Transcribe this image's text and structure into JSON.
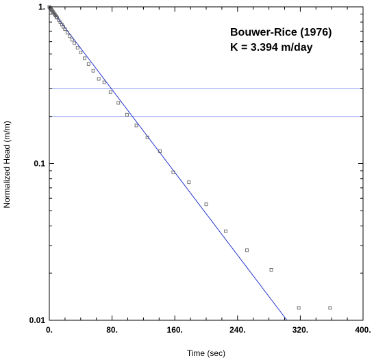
{
  "chart_data": {
    "type": "scatter",
    "xlabel": "Time (sec)",
    "ylabel": "Normalized Head (m/m)",
    "x_ticks": [
      0,
      80,
      160,
      240,
      320,
      400
    ],
    "x_tick_labels": [
      "0.",
      "80.",
      "160.",
      "240.",
      "320.",
      "400."
    ],
    "y_ticks": [
      0.01,
      0.1,
      1
    ],
    "y_tick_labels": [
      "0.01",
      "0.1",
      "1."
    ],
    "xlim": [
      0,
      400
    ],
    "ylim": [
      0.01,
      1
    ],
    "y_scale": "log",
    "grid": false,
    "annotation": {
      "line1": "Bouwer-Rice (1976)",
      "line2": "K = 3.394 m/day"
    },
    "reference_lines": [
      0.3,
      0.2
    ],
    "fit_line": {
      "x": [
        0,
        303
      ],
      "y": [
        1,
        0.01
      ]
    },
    "colors": {
      "fit": "#2233cc",
      "reference": "#8899ee",
      "points": "#555555"
    },
    "series": [
      {
        "values_x": [
          0,
          1,
          2,
          3,
          4,
          5,
          6,
          7,
          8,
          9,
          10,
          12,
          14,
          16,
          18,
          20,
          23,
          26,
          29,
          32,
          36,
          40,
          45,
          50,
          56,
          63,
          70,
          78,
          88,
          99,
          111,
          125,
          141,
          158,
          178,
          200,
          225,
          252,
          283,
          318,
          358
        ],
        "values_y": [
          1,
          0.985,
          0.97,
          0.955,
          0.94,
          0.925,
          0.91,
          0.895,
          0.88,
          0.866,
          0.852,
          0.824,
          0.797,
          0.771,
          0.746,
          0.72,
          0.684,
          0.65,
          0.617,
          0.586,
          0.548,
          0.512,
          0.47,
          0.432,
          0.391,
          0.347,
          0.33,
          0.286,
          0.244,
          0.205,
          0.175,
          0.147,
          0.12,
          0.088,
          0.076,
          0.055,
          0.037,
          0.028,
          0.021,
          0.012,
          0.012
        ]
      }
    ]
  }
}
